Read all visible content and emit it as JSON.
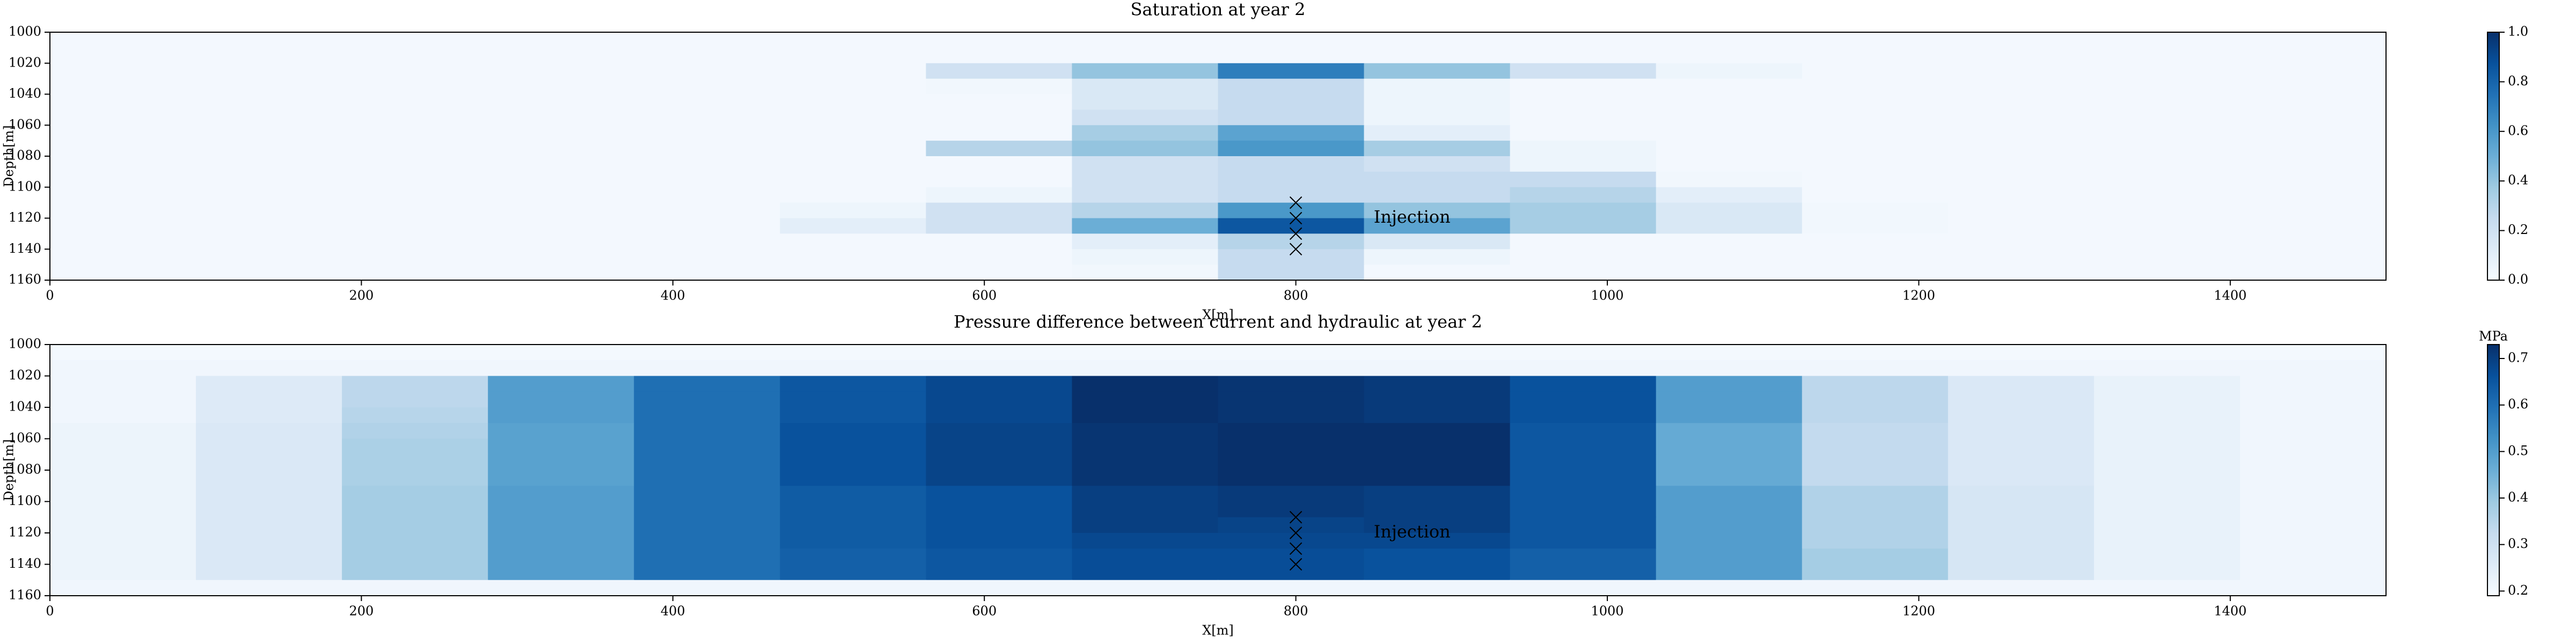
{
  "chart_data": [
    {
      "type": "heatmap",
      "title": "Saturation at year 2",
      "xlabel": "X[m]",
      "ylabel": "Depth[m]",
      "xlim": [
        0,
        1500
      ],
      "ylim": [
        1160,
        1000
      ],
      "xticks": [
        0,
        200,
        400,
        600,
        800,
        1000,
        1200,
        1400
      ],
      "yticks": [
        1000,
        1020,
        1040,
        1060,
        1080,
        1100,
        1120,
        1140,
        1160
      ],
      "colormap": "Blues",
      "clim": [
        0,
        1
      ],
      "cticks": [
        {
          "value": 0,
          "label": "0.0"
        },
        0.2,
        0.4,
        0.6,
        0.8,
        {
          "value": 1,
          "label": "1.0"
        }
      ],
      "markers": {
        "x": [
          800,
          800,
          800,
          800
        ],
        "y": [
          1110,
          1120,
          1130,
          1140
        ]
      },
      "annotations": [
        {
          "text": "Injection",
          "x": 850,
          "y": 1120
        }
      ],
      "values": [
        [
          0.02,
          0.02,
          0.02,
          0.02,
          0.02,
          0.02,
          0.02,
          0.02,
          0.02,
          0.02,
          0.02,
          0.02,
          0.02,
          0.02,
          0.02,
          0.02
        ],
        [
          0.02,
          0.02,
          0.02,
          0.02,
          0.02,
          0.02,
          0.02,
          0.02,
          0.02,
          0.02,
          0.02,
          0.02,
          0.02,
          0.02,
          0.02,
          0.02
        ],
        [
          0.02,
          0.02,
          0.02,
          0.02,
          0.02,
          0.02,
          0.2,
          0.4,
          0.7,
          0.4,
          0.2,
          0.05,
          0.02,
          0.02,
          0.02,
          0.02
        ],
        [
          0.02,
          0.02,
          0.02,
          0.02,
          0.02,
          0.02,
          0.03,
          0.15,
          0.25,
          0.05,
          0.02,
          0.02,
          0.02,
          0.02,
          0.02,
          0.02
        ],
        [
          0.02,
          0.02,
          0.02,
          0.02,
          0.02,
          0.02,
          0.02,
          0.15,
          0.25,
          0.05,
          0.02,
          0.02,
          0.02,
          0.02,
          0.02,
          0.02
        ],
        [
          0.02,
          0.02,
          0.02,
          0.02,
          0.02,
          0.02,
          0.02,
          0.2,
          0.25,
          0.05,
          0.02,
          0.02,
          0.02,
          0.02,
          0.02,
          0.02
        ],
        [
          0.02,
          0.02,
          0.02,
          0.02,
          0.02,
          0.02,
          0.02,
          0.35,
          0.55,
          0.1,
          0.02,
          0.02,
          0.02,
          0.02,
          0.02,
          0.02
        ],
        [
          0.02,
          0.02,
          0.02,
          0.02,
          0.02,
          0.02,
          0.3,
          0.4,
          0.6,
          0.35,
          0.05,
          0.02,
          0.02,
          0.02,
          0.02,
          0.02
        ],
        [
          0.02,
          0.02,
          0.02,
          0.02,
          0.02,
          0.02,
          0.02,
          0.2,
          0.25,
          0.2,
          0.05,
          0.02,
          0.02,
          0.02,
          0.02,
          0.02
        ],
        [
          0.02,
          0.02,
          0.02,
          0.02,
          0.02,
          0.02,
          0.02,
          0.2,
          0.25,
          0.25,
          0.25,
          0.03,
          0.02,
          0.02,
          0.02,
          0.02
        ],
        [
          0.02,
          0.02,
          0.02,
          0.02,
          0.02,
          0.02,
          0.05,
          0.2,
          0.25,
          0.25,
          0.3,
          0.1,
          0.02,
          0.02,
          0.02,
          0.02
        ],
        [
          0.02,
          0.02,
          0.02,
          0.02,
          0.02,
          0.05,
          0.2,
          0.3,
          0.6,
          0.4,
          0.35,
          0.15,
          0.03,
          0.02,
          0.02,
          0.02
        ],
        [
          0.02,
          0.02,
          0.02,
          0.02,
          0.02,
          0.1,
          0.2,
          0.5,
          0.85,
          0.55,
          0.35,
          0.15,
          0.03,
          0.02,
          0.02,
          0.02
        ],
        [
          0.02,
          0.02,
          0.02,
          0.02,
          0.02,
          0.02,
          0.02,
          0.1,
          0.3,
          0.15,
          0.02,
          0.02,
          0.02,
          0.02,
          0.02,
          0.02
        ],
        [
          0.02,
          0.02,
          0.02,
          0.02,
          0.02,
          0.02,
          0.02,
          0.05,
          0.25,
          0.05,
          0.02,
          0.02,
          0.02,
          0.02,
          0.02,
          0.02
        ],
        [
          0.02,
          0.02,
          0.02,
          0.02,
          0.02,
          0.02,
          0.02,
          0.03,
          0.25,
          0.02,
          0.02,
          0.02,
          0.02,
          0.02,
          0.02,
          0.02
        ]
      ]
    },
    {
      "type": "heatmap",
      "title": "Pressure difference between current and hydraulic at year 2",
      "xlabel": "X[m]",
      "ylabel": "Depth[m]",
      "xlim": [
        0,
        1500
      ],
      "ylim": [
        1160,
        1000
      ],
      "xticks": [
        0,
        200,
        400,
        600,
        800,
        1000,
        1200,
        1400
      ],
      "yticks": [
        1000,
        1020,
        1040,
        1060,
        1080,
        1100,
        1120,
        1140,
        1160
      ],
      "colormap": "Blues",
      "clim": [
        0.19,
        0.73
      ],
      "clabel": "MPa",
      "cticks": [
        0.2,
        0.3,
        0.4,
        0.5,
        0.6,
        0.7
      ],
      "markers": {
        "x": [
          800,
          800,
          800,
          800
        ],
        "y": [
          1110,
          1120,
          1130,
          1140
        ]
      },
      "annotations": [
        {
          "text": "Injection",
          "x": 850,
          "y": 1120
        }
      ],
      "values": [
        [
          0.2,
          0.2,
          0.2,
          0.2,
          0.2,
          0.2,
          0.2,
          0.2,
          0.2,
          0.2,
          0.2,
          0.2,
          0.2,
          0.2,
          0.2,
          0.2
        ],
        [
          0.21,
          0.21,
          0.21,
          0.21,
          0.21,
          0.21,
          0.21,
          0.21,
          0.21,
          0.21,
          0.21,
          0.21,
          0.21,
          0.21,
          0.21,
          0.21
        ],
        [
          0.21,
          0.26,
          0.34,
          0.5,
          0.6,
          0.65,
          0.68,
          0.73,
          0.72,
          0.71,
          0.66,
          0.5,
          0.34,
          0.27,
          0.23,
          0.21
        ],
        [
          0.21,
          0.26,
          0.34,
          0.5,
          0.6,
          0.65,
          0.68,
          0.73,
          0.72,
          0.71,
          0.66,
          0.5,
          0.34,
          0.27,
          0.23,
          0.21
        ],
        [
          0.21,
          0.26,
          0.35,
          0.5,
          0.6,
          0.65,
          0.68,
          0.73,
          0.72,
          0.71,
          0.66,
          0.5,
          0.34,
          0.27,
          0.23,
          0.21
        ],
        [
          0.22,
          0.27,
          0.36,
          0.49,
          0.6,
          0.66,
          0.69,
          0.72,
          0.73,
          0.73,
          0.65,
          0.47,
          0.33,
          0.27,
          0.23,
          0.21
        ],
        [
          0.22,
          0.27,
          0.37,
          0.49,
          0.6,
          0.66,
          0.69,
          0.72,
          0.73,
          0.73,
          0.65,
          0.47,
          0.33,
          0.27,
          0.23,
          0.21
        ],
        [
          0.22,
          0.27,
          0.37,
          0.49,
          0.6,
          0.66,
          0.69,
          0.72,
          0.73,
          0.73,
          0.65,
          0.47,
          0.33,
          0.27,
          0.23,
          0.21
        ],
        [
          0.22,
          0.27,
          0.37,
          0.49,
          0.6,
          0.66,
          0.69,
          0.72,
          0.73,
          0.73,
          0.65,
          0.47,
          0.33,
          0.27,
          0.23,
          0.21
        ],
        [
          0.22,
          0.27,
          0.38,
          0.5,
          0.6,
          0.64,
          0.66,
          0.7,
          0.71,
          0.7,
          0.65,
          0.5,
          0.36,
          0.28,
          0.23,
          0.21
        ],
        [
          0.22,
          0.27,
          0.38,
          0.5,
          0.6,
          0.64,
          0.66,
          0.7,
          0.71,
          0.7,
          0.65,
          0.5,
          0.36,
          0.28,
          0.23,
          0.21
        ],
        [
          0.22,
          0.27,
          0.38,
          0.5,
          0.6,
          0.64,
          0.66,
          0.7,
          0.69,
          0.7,
          0.65,
          0.5,
          0.36,
          0.28,
          0.23,
          0.21
        ],
        [
          0.22,
          0.27,
          0.38,
          0.5,
          0.6,
          0.64,
          0.66,
          0.68,
          0.68,
          0.68,
          0.65,
          0.5,
          0.36,
          0.28,
          0.23,
          0.21
        ],
        [
          0.22,
          0.27,
          0.38,
          0.5,
          0.6,
          0.63,
          0.65,
          0.67,
          0.67,
          0.66,
          0.63,
          0.5,
          0.38,
          0.28,
          0.23,
          0.21
        ],
        [
          0.22,
          0.27,
          0.38,
          0.5,
          0.6,
          0.63,
          0.65,
          0.67,
          0.67,
          0.66,
          0.63,
          0.5,
          0.38,
          0.28,
          0.23,
          0.21
        ],
        [
          0.21,
          0.21,
          0.21,
          0.21,
          0.21,
          0.21,
          0.21,
          0.21,
          0.21,
          0.21,
          0.21,
          0.21,
          0.21,
          0.21,
          0.21,
          0.21
        ]
      ]
    }
  ]
}
